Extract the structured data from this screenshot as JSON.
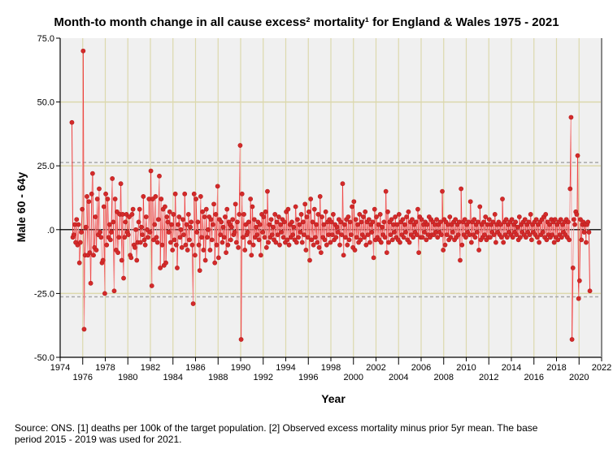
{
  "chart_data": {
    "type": "line",
    "title": "Month-to month change in all cause excess² mortality¹  for England & Wales 1975 - 2021",
    "xlabel": "Year",
    "ylabel": "Male 60 - 64y",
    "xlim": [
      1974,
      2022
    ],
    "ylim": [
      -50,
      75
    ],
    "x_ticks_upper": [
      "1974",
      "1978",
      "1982",
      "1986",
      "1990",
      "1994",
      "1998",
      "2002",
      "2006",
      "2010",
      "2014",
      "2018",
      "2022"
    ],
    "x_ticks_lower": [
      "1976",
      "1980",
      "1984",
      "1988",
      "1992",
      "1996",
      "2000",
      "2004",
      "2008",
      "2012",
      "2016",
      "2020"
    ],
    "y_ticks": [
      {
        "v": 75,
        "label": "75.0"
      },
      {
        "v": 50,
        "label": "50.0"
      },
      {
        "v": 25,
        "label": "25.0"
      },
      {
        "v": 0,
        "label": ".0"
      },
      {
        "v": -25,
        "label": "-25.0"
      },
      {
        "v": -50,
        "label": "-50.0"
      }
    ],
    "reference_lines": [
      26.3,
      -26.3
    ],
    "grid": true,
    "start_year": 1975,
    "series": [
      {
        "name": "Male 60 - 64y monthly change",
        "color": "#d42a2a",
        "values": [
          42,
          -3,
          -2,
          2,
          -5,
          4,
          -6,
          2,
          -13,
          -5,
          -1,
          8,
          70,
          -39,
          -10,
          1,
          13,
          -10,
          11,
          -9,
          -21,
          14,
          22,
          -10,
          -7,
          5,
          -8,
          12,
          -2,
          16,
          -1,
          -3,
          -13,
          -12,
          9,
          -25,
          14,
          -6,
          12,
          -3,
          2,
          -4,
          -1,
          20,
          3,
          -24,
          12,
          -8,
          7,
          -9,
          -3,
          6,
          18,
          -12,
          6,
          -19,
          -3,
          3,
          6,
          -1,
          -2,
          5,
          -10,
          -11,
          6,
          8,
          -6,
          -7,
          0,
          -12,
          -5,
          3,
          8,
          -5,
          1,
          -2,
          13,
          -4,
          -6,
          5,
          0,
          -3,
          12,
          -1,
          23,
          -22,
          12,
          -4,
          2,
          13,
          -3,
          -5,
          4,
          21,
          -15,
          12,
          -6,
          8,
          -14,
          9,
          -13,
          5,
          3,
          -1,
          7,
          -5,
          2,
          -8,
          6,
          -4,
          14,
          -6,
          -15,
          2,
          5,
          -3,
          0,
          -7,
          4,
          -2,
          14,
          -6,
          2,
          -8,
          6,
          -4,
          1,
          3,
          -6,
          -29,
          14,
          -10,
          12,
          -1,
          3,
          -6,
          -16,
          13,
          -3,
          7,
          -8,
          5,
          -12,
          8,
          -3,
          0,
          5,
          -8,
          4,
          -4,
          2,
          10,
          -13,
          6,
          -6,
          17,
          -11,
          4,
          -2,
          3,
          -5,
          1,
          -3,
          5,
          -9,
          8,
          -6,
          3,
          2,
          -4,
          1,
          4,
          -2,
          -1,
          10,
          -5,
          3,
          -7,
          6,
          33,
          -43,
          14,
          -3,
          6,
          -8,
          2,
          -2,
          -1,
          3,
          -5,
          12,
          -10,
          9,
          -6,
          4,
          -3,
          1,
          -2,
          3,
          -4,
          2,
          -10,
          6,
          -1,
          5,
          -3,
          7,
          -7,
          15,
          -5,
          2,
          -3,
          4,
          -2,
          1,
          -4,
          6,
          -5,
          3,
          -2,
          5,
          -6,
          2,
          -1,
          4,
          -3,
          3,
          -5,
          7,
          -4,
          8,
          -6,
          2,
          -3,
          3,
          -2,
          1,
          -4,
          9,
          -5,
          4,
          -3,
          2,
          -1,
          6,
          -5,
          3,
          -2,
          10,
          -8,
          5,
          -3,
          7,
          -12,
          12,
          -4,
          3,
          -6,
          8,
          -3,
          2,
          -5,
          6,
          -7,
          13,
          -9,
          5,
          -3,
          2,
          -4,
          7,
          -6,
          3,
          -2,
          4,
          -5,
          3,
          -2,
          6,
          -4,
          2,
          -3,
          1,
          -1,
          4,
          -6,
          3,
          -2,
          18,
          -10,
          2,
          -3,
          4,
          -6,
          5,
          -4,
          3,
          -2,
          9,
          -7,
          11,
          -8,
          4,
          -3,
          2,
          -5,
          6,
          -4,
          3,
          -2,
          5,
          -3,
          7,
          -6,
          3,
          -2,
          4,
          -5,
          2,
          -1,
          3,
          -11,
          8,
          -4,
          5,
          -3,
          2,
          -4,
          6,
          -5,
          1,
          -2,
          3,
          -3,
          15,
          -9,
          7,
          -5,
          3,
          -2,
          4,
          -4,
          2,
          -1,
          5,
          -3,
          2,
          -4,
          6,
          -5,
          3,
          -2,
          4,
          -3,
          2,
          -1,
          5,
          -4,
          7,
          -5,
          3,
          -2,
          4,
          -3,
          2,
          -1,
          3,
          -2,
          8,
          -9,
          5,
          -3,
          4,
          -3,
          2,
          -1,
          3,
          -4,
          2,
          -2,
          5,
          -3,
          4,
          -2,
          3,
          -2,
          2,
          -1,
          4,
          -3,
          2,
          -1,
          3,
          -2,
          15,
          -8,
          4,
          -6,
          3,
          -2,
          2,
          -4,
          5,
          -3,
          2,
          -1,
          3,
          -4,
          4,
          -3,
          2,
          -2,
          3,
          -12,
          16,
          -6,
          3,
          -2,
          4,
          -3,
          2,
          -1,
          3,
          -2,
          11,
          -5,
          3,
          -2,
          4,
          -3,
          2,
          -1,
          3,
          -8,
          9,
          -4,
          2,
          -3,
          3,
          -2,
          5,
          -4,
          2,
          -3,
          4,
          -3,
          2,
          -1,
          3,
          -2,
          6,
          -5,
          2,
          -1,
          3,
          -2,
          2,
          -3,
          12,
          -5,
          3,
          -2,
          4,
          -3,
          2,
          -1,
          3,
          -2,
          4,
          -3,
          2,
          -1,
          3,
          -2,
          1,
          -4,
          5,
          -3,
          2,
          -1,
          3,
          -2,
          4,
          -3,
          2,
          -1,
          3,
          -2,
          6,
          -4,
          2,
          -1,
          3,
          -2,
          4,
          -3,
          2,
          -5,
          3,
          -2,
          4,
          -1,
          5,
          -3,
          6,
          -4,
          3,
          -2,
          2,
          -3,
          4,
          -2,
          3,
          -5,
          4,
          -3,
          2,
          -4,
          3,
          -2,
          4,
          -3,
          2,
          -1,
          3,
          -2,
          4,
          -3,
          3,
          -4,
          16,
          44,
          -43,
          -15,
          4,
          2,
          7,
          6,
          29,
          -27,
          -20,
          4,
          -4,
          2,
          3,
          -1,
          2,
          -5,
          2,
          3,
          -1,
          -24
        ]
      }
    ]
  },
  "footnote": {
    "line1": "Source: ONS. [1] deaths per 100k of the target population. [2] Observed excess mortality minus prior 5yr mean. The base",
    "line2": "period 2015 - 2019 was used for 2021."
  }
}
